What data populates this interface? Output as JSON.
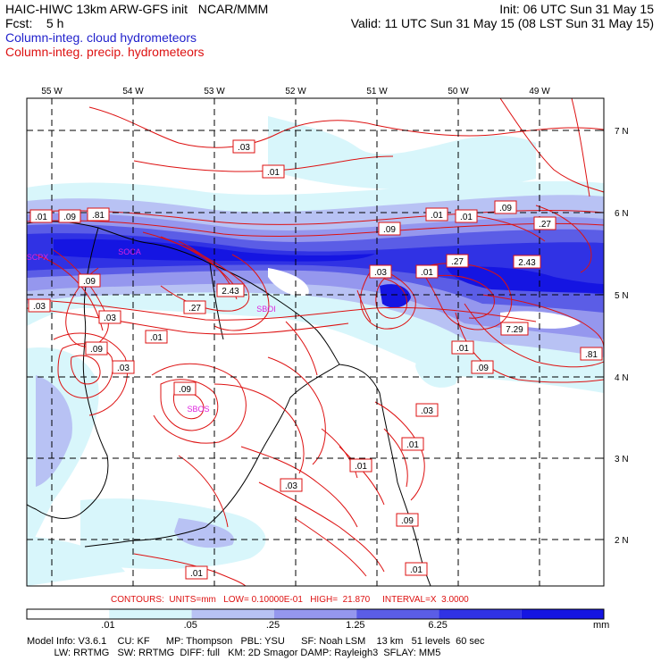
{
  "header": {
    "title": "HAIC-HIWC 13km ARW-GFS init   NCAR/MMM",
    "fcst": "Fcst:    5 h",
    "init": "Init: 06 UTC Sun 31 May 15",
    "valid": "Valid: 11 UTC Sun 31 May 15 (08 LST Sun 31 May 15)",
    "legend_cloud": "Column-integ. cloud hydrometeors",
    "legend_precip": "Column-integ. precip. hydrometeors"
  },
  "colors": {
    "cloud_levels": [
      "#d8f6fb",
      "#b8c2f4",
      "#9597ee",
      "#5b5de6",
      "#3032e4",
      "#1515e2"
    ],
    "precip_contour": "#dd1111",
    "station": "#dd22dd"
  },
  "axes": {
    "lon_labels": [
      "55 W",
      "54 W",
      "53 W",
      "52 W",
      "51 W",
      "50 W",
      "49 W"
    ],
    "lat_labels": [
      "7 N",
      "6 N",
      "5 N",
      "4 N",
      "3 N",
      "2 N"
    ]
  },
  "contour_labels": [
    ".03",
    ".01",
    ".01",
    ".09",
    ".81",
    ".01",
    ".01",
    ".09",
    ".27",
    ".09",
    ".27",
    ".03",
    ".01",
    "2.43",
    ".09",
    ".03",
    "2.43",
    ".01",
    ".03",
    ".27",
    "7.29",
    ".01",
    ".09",
    ".81",
    ".09",
    ".03",
    ".09",
    ".03",
    ".01",
    ".01",
    ".03",
    ".09",
    ".01",
    ".01"
  ],
  "stations": [
    "SCPX",
    "SOCA",
    "SBOI",
    "SBOS"
  ],
  "footer": {
    "contours_line": "CONTOURS:  UNITS=mm   LOW= 0.10000E-01   HIGH=  21.870     INTERVAL=X  3.0000",
    "colorbar_labels": [
      ".01",
      ".05",
      ".25",
      "1.25",
      "6.25"
    ],
    "colorbar_units": "mm",
    "model_info_1": "Model Info: V3.6.1    CU: KF      MP: Thompson   PBL: YSU      SF: Noah LSM    13 km   51 levels  60 sec",
    "model_info_2": "          LW: RRTMG   SW: RRTMG  DIFF: full   KM: 2D Smagor DAMP: Rayleigh3  SFLAY: MM5"
  }
}
